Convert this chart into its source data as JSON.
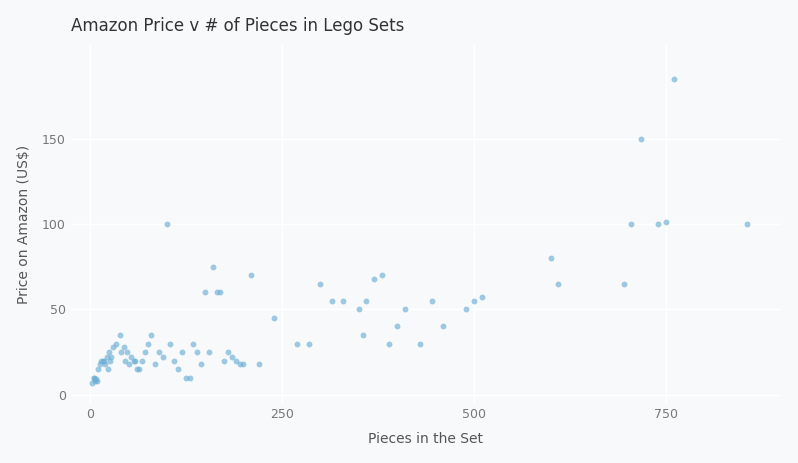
{
  "title": "Amazon Price v # of Pieces in Lego Sets",
  "xlabel": "Pieces in the Set",
  "ylabel": "Price on Amazon (US$)",
  "dot_color": "#6baed6",
  "dot_alpha": 0.65,
  "dot_size": 18,
  "bg_color": "#f7f9fb",
  "grid_color": "#ffffff",
  "xlim": [
    -25,
    900
  ],
  "ylim": [
    -5,
    205
  ],
  "xticks": [
    0,
    250,
    500,
    750
  ],
  "yticks": [
    0,
    50,
    100,
    150
  ],
  "pieces": [
    3,
    5,
    6,
    7,
    8,
    10,
    11,
    13,
    15,
    17,
    18,
    20,
    22,
    24,
    25,
    26,
    28,
    30,
    34,
    39,
    41,
    44,
    46,
    48,
    51,
    54,
    57,
    59,
    62,
    64,
    68,
    72,
    76,
    80,
    85,
    90,
    95,
    100,
    105,
    110,
    115,
    120,
    125,
    130,
    135,
    140,
    145,
    150,
    155,
    160,
    165,
    170,
    175,
    180,
    185,
    190,
    195,
    200,
    210,
    220,
    240,
    270,
    285,
    300,
    315,
    330,
    350,
    355,
    360,
    370,
    380,
    390,
    400,
    410,
    430,
    445,
    460,
    490,
    500,
    510,
    600,
    610,
    695,
    705,
    718,
    740,
    750,
    760,
    855
  ],
  "prices": [
    7,
    10,
    10,
    8,
    9,
    8,
    15,
    18,
    20,
    20,
    20,
    18,
    22,
    15,
    25,
    20,
    22,
    28,
    30,
    35,
    25,
    28,
    20,
    25,
    18,
    22,
    20,
    20,
    15,
    15,
    20,
    25,
    30,
    35,
    18,
    25,
    22,
    100,
    30,
    20,
    15,
    25,
    10,
    10,
    30,
    25,
    18,
    60,
    25,
    75,
    60,
    60,
    20,
    25,
    22,
    20,
    18,
    18,
    70,
    18,
    45,
    30,
    30,
    65,
    55,
    55,
    50,
    35,
    55,
    68,
    70,
    30,
    40,
    50,
    30,
    55,
    40,
    50,
    55,
    57,
    80,
    65,
    65,
    100,
    150,
    100,
    101,
    185,
    100
  ]
}
